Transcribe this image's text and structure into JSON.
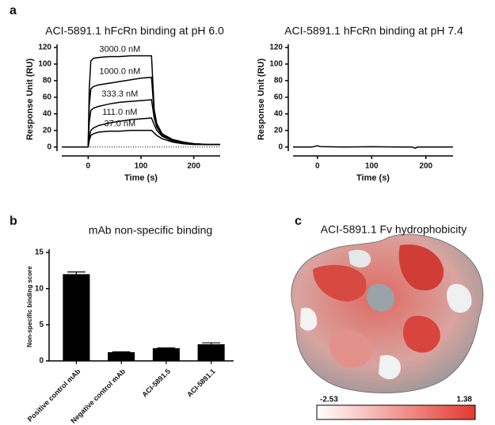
{
  "panels": [
    "a",
    "b",
    "c"
  ],
  "chart_data": [
    {
      "type": "line",
      "title": "ACI-5891.1 hFcRn binding at pH 6.0",
      "xlabel": "Time (s)",
      "ylabel": "Response Unit (RU)",
      "x": [
        -50,
        0,
        2,
        5,
        10,
        20,
        40,
        60,
        80,
        100,
        120,
        125,
        130,
        140,
        160,
        180,
        200,
        225,
        250
      ],
      "series": [
        {
          "name": "3000.0 nM",
          "color": "#000000",
          "values": [
            0,
            0,
            70,
            104,
            107,
            108,
            109,
            109,
            110,
            110,
            110,
            45,
            28,
            16,
            9,
            6,
            4,
            3,
            3
          ]
        },
        {
          "name": "1000.0 nM",
          "color": "#000000",
          "values": [
            0,
            0,
            50,
            70,
            73,
            75,
            77,
            79,
            81,
            83,
            84,
            40,
            26,
            15,
            9,
            6,
            4,
            3,
            3
          ]
        },
        {
          "name": "333.3 nM",
          "color": "#000000",
          "values": [
            0,
            0,
            30,
            44,
            47,
            49,
            52,
            54,
            55,
            56,
            57,
            35,
            24,
            14,
            8,
            5,
            4,
            3,
            3
          ]
        },
        {
          "name": "111.0 nM",
          "color": "#000000",
          "values": [
            0,
            0,
            12,
            20,
            23,
            26,
            29,
            31,
            33,
            34,
            35,
            27,
            20,
            13,
            7,
            5,
            4,
            3,
            3
          ]
        },
        {
          "name": "37.0 nM",
          "color": "#000000",
          "values": [
            0,
            0,
            8,
            14,
            16,
            18,
            19,
            19,
            20,
            20,
            20,
            17,
            14,
            10,
            6,
            4,
            3,
            3,
            3
          ]
        }
      ],
      "baseline": 0,
      "xlim": [
        -50,
        250
      ],
      "ylim": [
        -5,
        120
      ],
      "xticks": [
        0,
        100,
        200
      ],
      "yticks": [
        0,
        20,
        40,
        60,
        80,
        100,
        120
      ]
    },
    {
      "type": "line",
      "title": "ACI-5891.1 hFcRn binding at pH 7.4",
      "xlabel": "Time (s)",
      "ylabel": "Response Unit (RU)",
      "x": [
        -45,
        -10,
        0,
        5,
        50,
        100,
        150,
        175,
        180,
        185,
        250
      ],
      "series": [
        {
          "color": "#000000",
          "values": [
            0,
            0,
            1.5,
            0.5,
            0,
            0.3,
            0,
            0,
            -1.5,
            0,
            0
          ]
        }
      ],
      "xlim": [
        -45,
        250
      ],
      "ylim": [
        -5,
        120
      ],
      "xticks": [
        0,
        100,
        200
      ],
      "yticks": [
        0,
        20,
        40,
        60,
        80,
        100,
        120
      ]
    },
    {
      "type": "bar",
      "title": "mAb non-specific binding",
      "ylabel": "Non-specific binding score",
      "categories": [
        "Positive control mAb",
        "Negative control mAb",
        "ACI-5891.5",
        "ACI-5891.1"
      ],
      "values": [
        12.0,
        1.2,
        1.75,
        2.3
      ],
      "errors": [
        0.3,
        0.05,
        0.05,
        0.2
      ],
      "color": "#000000",
      "ylim": [
        0,
        15
      ],
      "yticks": [
        0,
        5,
        10,
        15
      ]
    },
    {
      "type": "colorbar",
      "title": "ACI-5891.1 Fv hydrophobicity",
      "colorscale": {
        "min": -2.53,
        "max": 1.38,
        "colors": [
          "#ffffff",
          "#e5382f"
        ]
      }
    }
  ]
}
